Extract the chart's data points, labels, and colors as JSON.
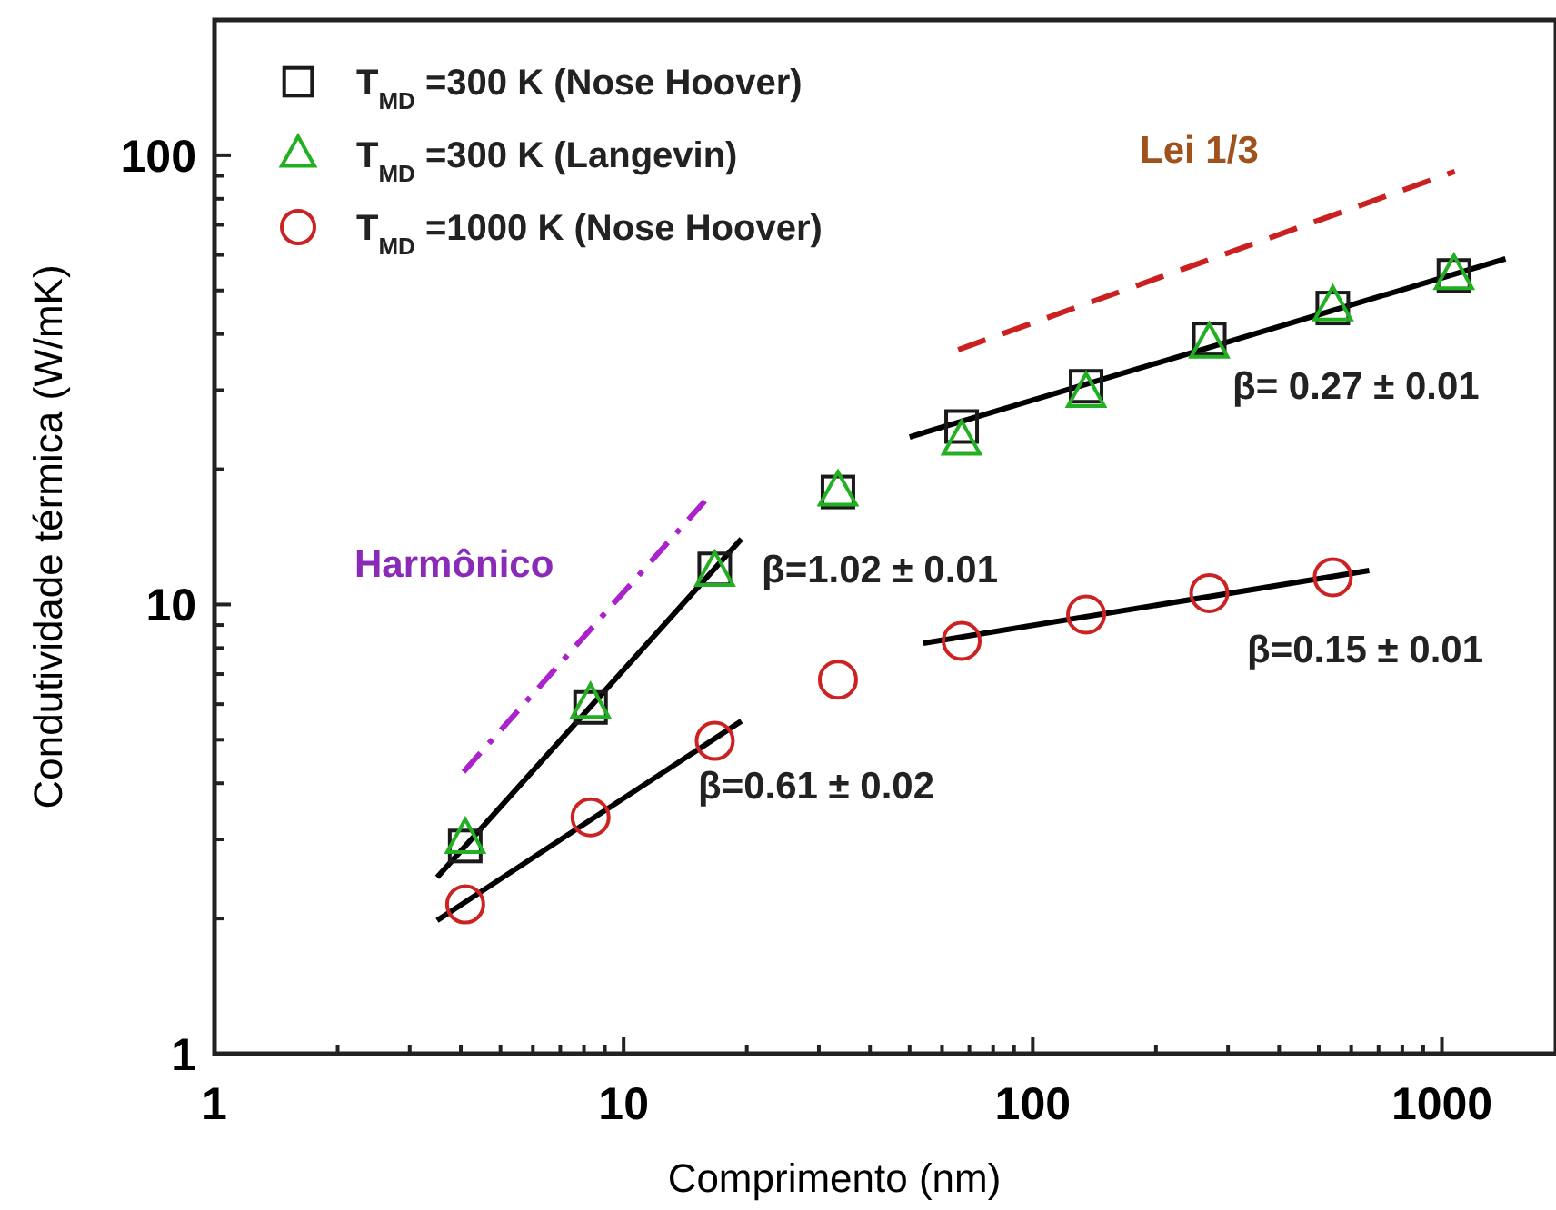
{
  "chart_data": {
    "type": "scatter",
    "xlabel": "Comprimento (nm)",
    "ylabel": "Condutividade térmica (W/mK)",
    "log": "xy",
    "grid": false,
    "legend": "top left",
    "xlim": [
      1,
      1900
    ],
    "ylim": [
      1,
      200
    ],
    "xticks": [
      1,
      {
        "value": 2,
        "label": null
      },
      {
        "value": 3,
        "label": null
      },
      {
        "value": 4,
        "label": null
      },
      {
        "value": 5,
        "label": null
      },
      {
        "value": 6,
        "label": null
      },
      {
        "value": 7,
        "label": null
      },
      {
        "value": 8,
        "label": null
      },
      {
        "value": 9,
        "label": null
      },
      10,
      {
        "value": 20,
        "label": null
      },
      {
        "value": 30,
        "label": null
      },
      {
        "value": 40,
        "label": null
      },
      {
        "value": 50,
        "label": null
      },
      {
        "value": 60,
        "label": null
      },
      {
        "value": 70,
        "label": null
      },
      {
        "value": 80,
        "label": null
      },
      {
        "value": 90,
        "label": null
      },
      100,
      {
        "value": 200,
        "label": null
      },
      {
        "value": 300,
        "label": null
      },
      {
        "value": 400,
        "label": null
      },
      {
        "value": 500,
        "label": null
      },
      {
        "value": 600,
        "label": null
      },
      {
        "value": 700,
        "label": null
      },
      {
        "value": 800,
        "label": null
      },
      {
        "value": 900,
        "label": null
      },
      1000
    ],
    "yticks": [
      1,
      {
        "value": 2,
        "label": null
      },
      {
        "value": 3,
        "label": null
      },
      {
        "value": 4,
        "label": null
      },
      {
        "value": 5,
        "label": null
      },
      {
        "value": 6,
        "label": null
      },
      {
        "value": 7,
        "label": null
      },
      {
        "value": 8,
        "label": null
      },
      {
        "value": 9,
        "label": null
      },
      10,
      {
        "value": 20,
        "label": null
      },
      {
        "value": 30,
        "label": null
      },
      {
        "value": 40,
        "label": null
      },
      {
        "value": 50,
        "label": null
      },
      {
        "value": 60,
        "label": null
      },
      {
        "value": 70,
        "label": null
      },
      {
        "value": 80,
        "label": null
      },
      {
        "value": 90,
        "label": null
      },
      100,
      {
        "value": 200,
        "label": null
      }
    ],
    "series": [
      {
        "name": "T$_{MD}$ =300 K (Nose Hoover)",
        "marker": "square",
        "color": "#1a1a1a",
        "x": [
          4.1,
          8.3,
          16.7,
          33.4,
          67,
          135,
          270,
          541,
          1070
        ],
        "values": [
          2.9,
          5.9,
          12.0,
          17.8,
          24.9,
          30.6,
          39.0,
          45.7,
          54
        ]
      },
      {
        "name": "T$_{MD}$ =300 K (Langevin)",
        "marker": "triangle",
        "color": "#22b022",
        "x": [
          4.1,
          8.3,
          16.7,
          33.4,
          67,
          135,
          270,
          541,
          1070
        ],
        "values": [
          3.0,
          6.0,
          11.8,
          17.8,
          23.1,
          29.5,
          38,
          46,
          54
        ]
      },
      {
        "name": "T$_{MD}$ =1000 K (Nose Hoover)",
        "marker": "circle",
        "color": "#cc2222",
        "x": [
          4.1,
          8.3,
          16.7,
          33.4,
          67,
          135,
          270,
          541
        ],
        "values": [
          2.15,
          3.36,
          4.97,
          6.8,
          8.3,
          9.5,
          10.6,
          11.5
        ]
      },
      {
        "type": "line",
        "color": "#000000",
        "line_style": "solid",
        "x": [
          3.5,
          19.4
        ],
        "values": [
          2.47,
          14.0
        ]
      },
      {
        "type": "line",
        "color": "#000000",
        "line_style": "solid",
        "x": [
          3.5,
          19.4
        ],
        "values": [
          1.98,
          5.5
        ]
      },
      {
        "type": "line",
        "color": "#000000",
        "line_style": "solid",
        "x": [
          50,
          1430
        ],
        "values": [
          23.6,
          58.8
        ]
      },
      {
        "type": "line",
        "color": "#000000",
        "line_style": "solid",
        "x": [
          54,
          664
        ],
        "values": [
          8.2,
          11.9
        ]
      },
      {
        "type": "line",
        "color": "#aa22cc",
        "line_style": "dotted",
        "x": [
          4.06,
          15.8
        ],
        "values": [
          4.24,
          17.0
        ]
      },
      {
        "type": "line",
        "color": "#cc1f1f",
        "line_style": "dashed",
        "x": [
          65.7,
          1075
        ],
        "values": [
          36.9,
          92
        ]
      }
    ],
    "annotations": [
      "β=1.02 ± 0.01",
      "β=0.61 ± 0.02",
      "β= 0.27 ± 0.01",
      "β=0.15 ± 0.01",
      "Harmônico",
      "Lei 1/3"
    ]
  }
}
